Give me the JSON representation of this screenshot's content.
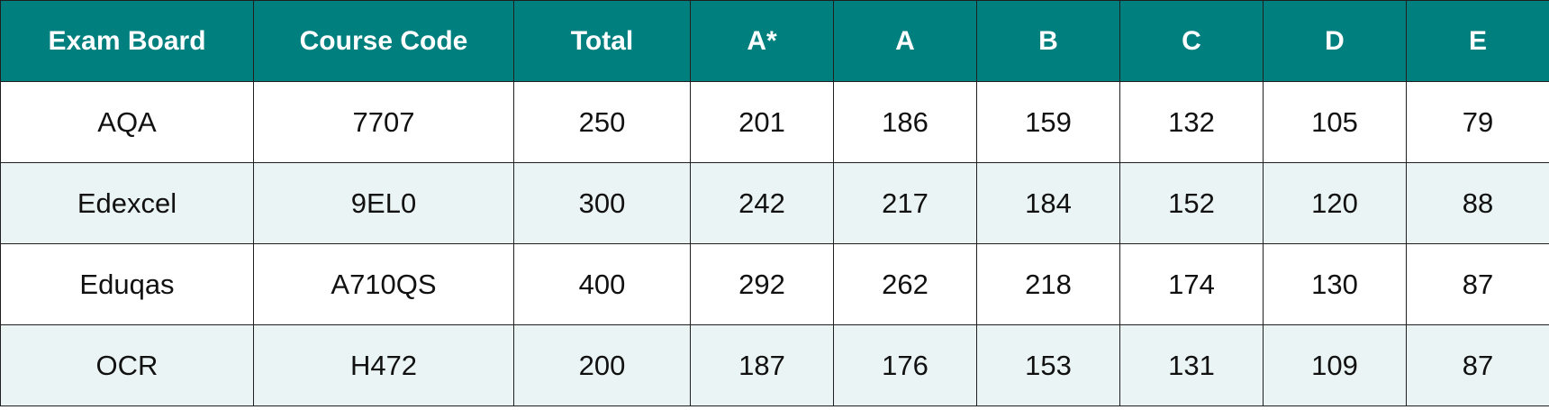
{
  "colors": {
    "header_background": "#007f7f",
    "header_text": "#ffffff",
    "row_alt_background": "#ebf4f4",
    "row_background": "#ffffff",
    "border": "#1f1f1f"
  },
  "table": {
    "headers": [
      "Exam Board",
      "Course Code",
      "Total",
      "A*",
      "A",
      "B",
      "C",
      "D",
      "E"
    ],
    "rows": [
      [
        "AQA",
        "7707",
        "250",
        "201",
        "186",
        "159",
        "132",
        "105",
        "79"
      ],
      [
        "Edexcel",
        "9EL0",
        "300",
        "242",
        "217",
        "184",
        "152",
        "120",
        "88"
      ],
      [
        "Eduqas",
        "A710QS",
        "400",
        "292",
        "262",
        "218",
        "174",
        "130",
        "87"
      ],
      [
        "OCR",
        "H472",
        "200",
        "187",
        "176",
        "153",
        "131",
        "109",
        "87"
      ]
    ]
  }
}
